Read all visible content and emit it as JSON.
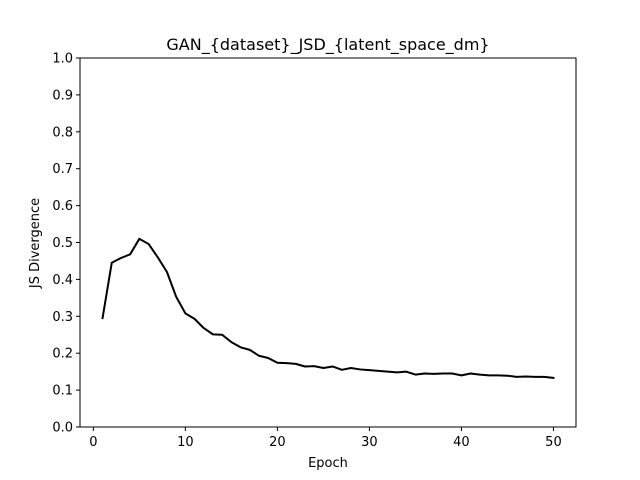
{
  "chart_data": {
    "type": "line",
    "title": "GAN_{dataset}_JSD_{latent_space_dm}",
    "xlabel": "Epoch",
    "ylabel": "JS Divergence",
    "xlim": [
      -1.45,
      52.45
    ],
    "ylim": [
      0.0,
      1.0
    ],
    "xticks": [
      0,
      10,
      20,
      30,
      40,
      50
    ],
    "yticks": [
      0.0,
      0.1,
      0.2,
      0.3,
      0.4,
      0.5,
      0.6,
      0.7,
      0.8,
      0.9,
      1.0
    ],
    "grid": false,
    "line_color": "#000000",
    "series": [
      {
        "x": [
          1,
          2,
          3,
          4,
          5,
          6,
          7,
          8,
          9,
          10,
          11,
          12,
          13,
          14,
          15,
          16,
          17,
          18,
          19,
          20,
          21,
          22,
          23,
          24,
          25,
          26,
          27,
          28,
          29,
          30,
          31,
          32,
          33,
          34,
          35,
          36,
          37,
          38,
          39,
          40,
          41,
          42,
          43,
          44,
          45,
          46,
          47,
          48,
          49,
          50
        ],
        "values": [
          0.295,
          0.445,
          0.458,
          0.468,
          0.51,
          0.496,
          0.46,
          0.42,
          0.353,
          0.308,
          0.293,
          0.268,
          0.251,
          0.25,
          0.23,
          0.216,
          0.209,
          0.193,
          0.187,
          0.174,
          0.173,
          0.171,
          0.164,
          0.165,
          0.16,
          0.164,
          0.155,
          0.16,
          0.156,
          0.154,
          0.152,
          0.15,
          0.148,
          0.15,
          0.142,
          0.145,
          0.144,
          0.145,
          0.145,
          0.14,
          0.145,
          0.142,
          0.14,
          0.14,
          0.139,
          0.136,
          0.137,
          0.136,
          0.136,
          0.133
        ]
      }
    ]
  }
}
